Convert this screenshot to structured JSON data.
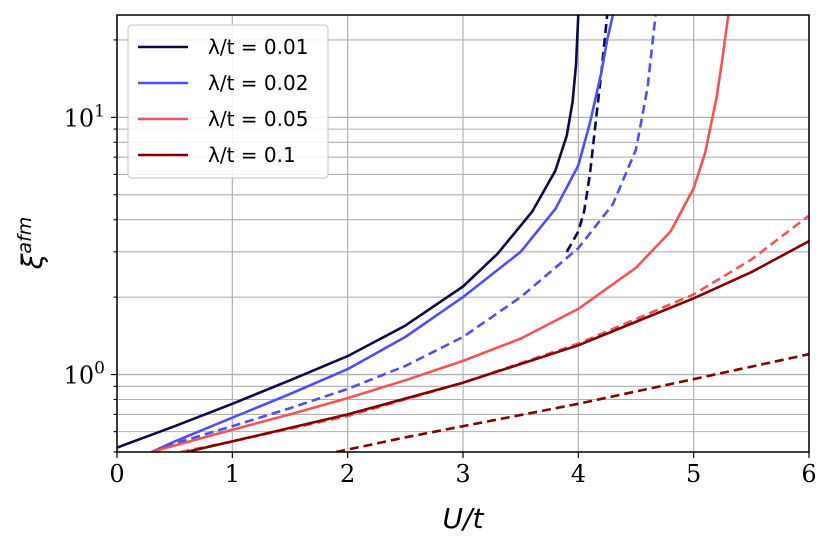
{
  "chart_data": {
    "type": "line",
    "title": "",
    "xlabel": "U/t",
    "ylabel": "ξ^afm",
    "yscale": "log",
    "xlim": [
      0,
      6
    ],
    "ylim": [
      0.5,
      25
    ],
    "grid": true,
    "legend_position": "top-left",
    "x_ticks": [
      0,
      1,
      2,
      3,
      4,
      5,
      6
    ],
    "x_tick_labels": [
      "0",
      "1",
      "2",
      "3",
      "4",
      "5",
      "6"
    ],
    "y_ticks": [
      1,
      10
    ],
    "series": [
      {
        "name": "λ/t = 0.01",
        "color": "#0b0b4a",
        "style": "solid",
        "x": [
          0,
          0.5,
          1,
          1.5,
          2,
          2.5,
          3,
          3.3,
          3.6,
          3.8,
          3.9,
          3.95,
          3.98,
          4.0
        ],
        "y": [
          0.52,
          0.63,
          0.77,
          0.95,
          1.18,
          1.55,
          2.2,
          2.95,
          4.3,
          6.2,
          8.5,
          11.5,
          16,
          25
        ]
      },
      {
        "name": "λ/t = 0.01 (dashed)",
        "color": "#0b0b4a",
        "style": "dashed",
        "x": [
          3.9,
          4.0,
          4.05,
          4.1,
          4.15,
          4.2,
          4.25
        ],
        "y": [
          3.0,
          3.6,
          4.3,
          6.0,
          9.5,
          15,
          25
        ]
      },
      {
        "name": "λ/t = 0.02",
        "color": "#5050f0",
        "style": "solid",
        "x": [
          0.3,
          0.5,
          1,
          1.5,
          2,
          2.5,
          3,
          3.5,
          3.8,
          4.0,
          4.1,
          4.2,
          4.25,
          4.3
        ],
        "y": [
          0.5,
          0.55,
          0.68,
          0.84,
          1.05,
          1.4,
          2.0,
          3.0,
          4.4,
          6.5,
          9.5,
          15,
          20,
          25
        ]
      },
      {
        "name": "λ/t = 0.02 (dashed)",
        "color": "#5050f0",
        "style": "dashed",
        "x": [
          0.3,
          0.5,
          1,
          1.5,
          2,
          2.5,
          3,
          3.5,
          4,
          4.3,
          4.5,
          4.6,
          4.67
        ],
        "y": [
          0.5,
          0.54,
          0.63,
          0.74,
          0.88,
          1.08,
          1.4,
          2.0,
          3.1,
          4.6,
          7.5,
          13,
          25
        ]
      },
      {
        "name": "λ/t = 0.05",
        "color": "#f05555",
        "style": "solid",
        "x": [
          0.3,
          0.5,
          1,
          1.5,
          2,
          2.5,
          3,
          3.5,
          4,
          4.5,
          4.8,
          5.0,
          5.1,
          5.2,
          5.25,
          5.3
        ],
        "y": [
          0.5,
          0.53,
          0.61,
          0.7,
          0.81,
          0.95,
          1.13,
          1.38,
          1.8,
          2.6,
          3.6,
          5.3,
          7.3,
          12,
          17,
          25
        ]
      },
      {
        "name": "λ/t = 0.05 (dashed)",
        "color": "#f05555",
        "style": "dashed",
        "x": [
          0.55,
          1,
          2,
          3,
          4,
          5,
          5.5,
          6
        ],
        "y": [
          0.5,
          0.55,
          0.69,
          0.93,
          1.32,
          2.05,
          2.8,
          4.15
        ]
      },
      {
        "name": "λ/t = 0.1",
        "color": "#800000",
        "style": "solid",
        "x": [
          0.6,
          1,
          2,
          3,
          4,
          5,
          5.5,
          6
        ],
        "y": [
          0.5,
          0.55,
          0.7,
          0.93,
          1.3,
          1.98,
          2.5,
          3.3
        ]
      },
      {
        "name": "λ/t = 0.1 (dashed)",
        "color": "#800000",
        "style": "dashed",
        "x": [
          1.9,
          2.5,
          3,
          4,
          5,
          6
        ],
        "y": [
          0.5,
          0.57,
          0.63,
          0.77,
          0.96,
          1.2
        ]
      }
    ],
    "legend": [
      {
        "label": "λ/t = 0.01",
        "color": "#0b0b4a"
      },
      {
        "label": "λ/t = 0.02",
        "color": "#5050f0"
      },
      {
        "label": "λ/t = 0.05",
        "color": "#f05555"
      },
      {
        "label": "λ/t = 0.1",
        "color": "#800000"
      }
    ]
  }
}
